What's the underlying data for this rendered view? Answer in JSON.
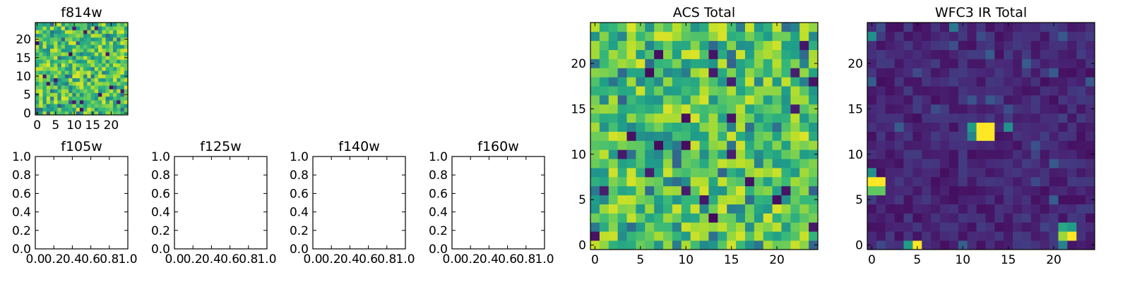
{
  "chart_data": [
    {
      "type": "heatmap",
      "title": "f814w",
      "colormap": "viridis",
      "grid_size": [
        25,
        25
      ],
      "xlim": [
        -0.5,
        24.5
      ],
      "ylim": [
        -0.5,
        24.5
      ],
      "xticks": [
        "0",
        "5",
        "10",
        "15",
        "20"
      ],
      "yticks": [
        "0",
        "5",
        "10",
        "15",
        "20"
      ],
      "value_profile": "noise_high",
      "seed": 11,
      "hot_pixels": []
    },
    {
      "type": "empty",
      "title": "f105w",
      "xlim": [
        0,
        1
      ],
      "ylim": [
        0,
        1
      ],
      "xticks": [
        "0.0",
        "0.2",
        "0.4",
        "0.6",
        "0.8",
        "1.0"
      ],
      "yticks": [
        "0.0",
        "0.2",
        "0.4",
        "0.6",
        "0.8",
        "1.0"
      ]
    },
    {
      "type": "empty",
      "title": "f125w",
      "xlim": [
        0,
        1
      ],
      "ylim": [
        0,
        1
      ],
      "xticks": [
        "0.0",
        "0.2",
        "0.4",
        "0.6",
        "0.8",
        "1.0"
      ],
      "yticks": [
        "0.0",
        "0.2",
        "0.4",
        "0.6",
        "0.8",
        "1.0"
      ]
    },
    {
      "type": "empty",
      "title": "f140w",
      "xlim": [
        0,
        1
      ],
      "ylim": [
        0,
        1
      ],
      "xticks": [
        "0.0",
        "0.2",
        "0.4",
        "0.6",
        "0.8",
        "1.0"
      ],
      "yticks": [
        "0.0",
        "0.2",
        "0.4",
        "0.6",
        "0.8",
        "1.0"
      ]
    },
    {
      "type": "empty",
      "title": "f160w",
      "xlim": [
        0,
        1
      ],
      "ylim": [
        0,
        1
      ],
      "xticks": [
        "0.0",
        "0.2",
        "0.4",
        "0.6",
        "0.8",
        "1.0"
      ],
      "yticks": [
        "0.0",
        "0.2",
        "0.4",
        "0.6",
        "0.8",
        "1.0"
      ]
    },
    {
      "type": "heatmap",
      "title": "ACS Total",
      "colormap": "viridis",
      "grid_size": [
        25,
        25
      ],
      "xlim": [
        -0.5,
        24.5
      ],
      "ylim": [
        -0.5,
        24.5
      ],
      "xticks": [
        "0",
        "5",
        "10",
        "15",
        "20"
      ],
      "yticks": [
        "0",
        "5",
        "10",
        "15",
        "20"
      ],
      "value_profile": "noise_high",
      "seed": 29,
      "hot_pixels": []
    },
    {
      "type": "heatmap",
      "title": "WFC3 IR Total",
      "colormap": "viridis",
      "grid_size": [
        25,
        25
      ],
      "xlim": [
        -0.5,
        24.5
      ],
      "ylim": [
        -0.5,
        24.5
      ],
      "xticks": [
        "0",
        "5",
        "10",
        "15",
        "20"
      ],
      "yticks": [
        "0",
        "5",
        "10",
        "15",
        "20"
      ],
      "value_profile": "background_low",
      "seed": 47,
      "hot_pixels": [
        {
          "x": 12,
          "y": 12,
          "v": 1.0
        },
        {
          "x": 13,
          "y": 12,
          "v": 1.0
        },
        {
          "x": 12,
          "y": 13,
          "v": 1.0
        },
        {
          "x": 13,
          "y": 13,
          "v": 1.0
        },
        {
          "x": 11,
          "y": 12,
          "v": 0.45
        },
        {
          "x": 11,
          "y": 13,
          "v": 0.55
        },
        {
          "x": 15,
          "y": 13,
          "v": 0.5
        },
        {
          "x": 0,
          "y": 7,
          "v": 1.0
        },
        {
          "x": 1,
          "y": 7,
          "v": 1.0
        },
        {
          "x": 0,
          "y": 6,
          "v": 0.75
        },
        {
          "x": 1,
          "y": 6,
          "v": 0.75
        },
        {
          "x": 0,
          "y": 8,
          "v": 0.5
        },
        {
          "x": 21,
          "y": 1,
          "v": 0.85
        },
        {
          "x": 22,
          "y": 1,
          "v": 1.0
        },
        {
          "x": 21,
          "y": 2,
          "v": 0.6
        },
        {
          "x": 22,
          "y": 2,
          "v": 0.55
        },
        {
          "x": 21,
          "y": 0,
          "v": 0.45
        },
        {
          "x": 4,
          "y": 0,
          "v": 0.55
        },
        {
          "x": 5,
          "y": 0,
          "v": 1.0
        },
        {
          "x": 0,
          "y": 23,
          "v": 0.5
        },
        {
          "x": 9,
          "y": 24,
          "v": 0.4
        }
      ]
    }
  ]
}
